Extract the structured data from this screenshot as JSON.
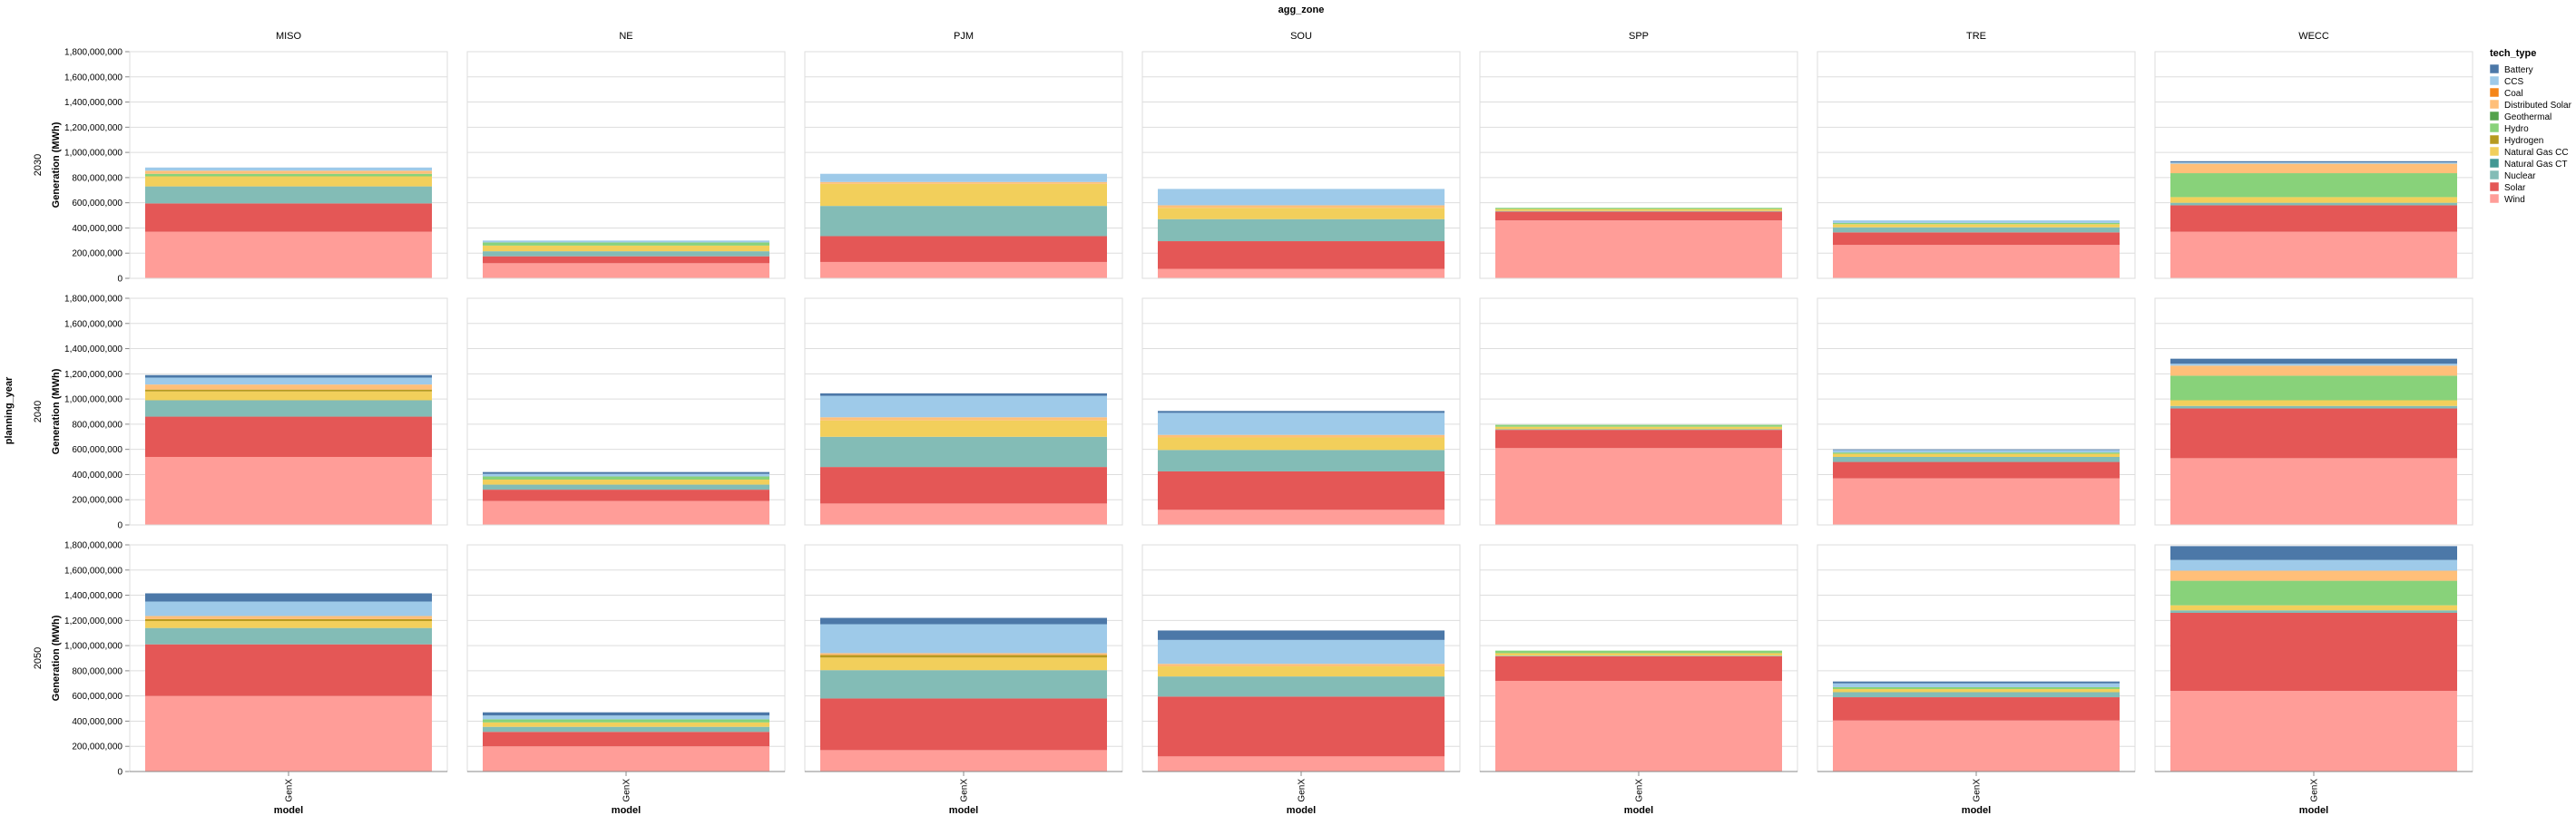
{
  "chart_data": {
    "type": "bar",
    "stacked": true,
    "title": "agg_zone",
    "row_title": "planning_year",
    "ylabel": "Generation (MWh)",
    "xlabel": "model",
    "x_category": "GenX",
    "ylim": [
      0,
      1800000000
    ],
    "y_ticks": [
      0,
      200000000,
      400000000,
      600000000,
      800000000,
      1000000000,
      1200000000,
      1400000000,
      1600000000,
      1800000000
    ],
    "y_tick_labels": [
      "0",
      "200,000,000",
      "400,000,000",
      "600,000,000",
      "800,000,000",
      "1,000,000,000",
      "1,200,000,000",
      "1,400,000,000",
      "1,600,000,000",
      "1,800,000,000"
    ],
    "grid": true,
    "legend_title": "tech_type",
    "legend_position": "right",
    "zones": [
      "MISO",
      "NE",
      "PJM",
      "SOU",
      "SPP",
      "TRE",
      "WECC"
    ],
    "years": [
      "2030",
      "2040",
      "2050"
    ],
    "tech_types": [
      "Battery",
      "CCS",
      "Coal",
      "Distributed Solar",
      "Geothermal",
      "Hydro",
      "Hydrogen",
      "Natural Gas CC",
      "Natural Gas CT",
      "Nuclear",
      "Solar",
      "Wind"
    ],
    "colors": {
      "Battery": "#4c78a8",
      "CCS": "#9ecae9",
      "Coal": "#f58518",
      "Distributed Solar": "#ffbf79",
      "Geothermal": "#54a24b",
      "Hydro": "#88d27a",
      "Hydrogen": "#b79a20",
      "Natural Gas CC": "#f2cf5b",
      "Natural Gas CT": "#439894",
      "Nuclear": "#83bcb6",
      "Solar": "#e45756",
      "Wind": "#ff9d98"
    },
    "stack_order": [
      "Wind",
      "Solar",
      "Nuclear",
      "Natural Gas CT",
      "Natural Gas CC",
      "Hydrogen",
      "Hydro",
      "Geothermal",
      "Distributed Solar",
      "Coal",
      "CCS",
      "Battery"
    ],
    "values": {
      "2030": {
        "MISO": {
          "Wind": 370000000,
          "Solar": 225000000,
          "Nuclear": 135000000,
          "Natural Gas CC": 80000000,
          "Distributed Solar": 25000000,
          "Hydro": 20000000,
          "CCS": 25000000
        },
        "NE": {
          "Wind": 120000000,
          "Solar": 55000000,
          "Nuclear": 40000000,
          "Natural Gas CC": 45000000,
          "Hydro": 25000000,
          "CCS": 15000000
        },
        "PJM": {
          "Wind": 130000000,
          "Solar": 205000000,
          "Nuclear": 240000000,
          "Natural Gas CC": 175000000,
          "Distributed Solar": 15000000,
          "CCS": 65000000
        },
        "SOU": {
          "Wind": 75000000,
          "Solar": 220000000,
          "Nuclear": 175000000,
          "Natural Gas CC": 90000000,
          "Distributed Solar": 20000000,
          "CCS": 130000000
        },
        "SPP": {
          "Wind": 460000000,
          "Solar": 70000000,
          "Nuclear": 5000000,
          "Natural Gas CC": 15000000,
          "Hydro": 10000000
        },
        "TRE": {
          "Wind": 265000000,
          "Solar": 100000000,
          "Nuclear": 40000000,
          "Natural Gas CC": 25000000,
          "Hydro": 10000000,
          "CCS": 20000000
        },
        "WECC": {
          "Wind": 370000000,
          "Solar": 210000000,
          "Nuclear": 20000000,
          "Natural Gas CC": 45000000,
          "Hydro": 190000000,
          "Distributed Solar": 75000000,
          "CCS": 10000000,
          "Battery": 10000000
        }
      },
      "2040": {
        "MISO": {
          "Wind": 540000000,
          "Solar": 320000000,
          "Nuclear": 130000000,
          "Natural Gas CC": 70000000,
          "Hydrogen": 15000000,
          "Distributed Solar": 40000000,
          "CCS": 55000000,
          "Battery": 20000000
        },
        "NE": {
          "Wind": 190000000,
          "Solar": 90000000,
          "Nuclear": 40000000,
          "Natural Gas CC": 40000000,
          "Hydro": 25000000,
          "CCS": 20000000,
          "Battery": 15000000
        },
        "PJM": {
          "Wind": 170000000,
          "Solar": 290000000,
          "Nuclear": 240000000,
          "Natural Gas CC": 130000000,
          "Distributed Solar": 25000000,
          "CCS": 170000000,
          "Battery": 20000000
        },
        "SOU": {
          "Wind": 120000000,
          "Solar": 305000000,
          "Nuclear": 170000000,
          "Natural Gas CC": 100000000,
          "Distributed Solar": 20000000,
          "CCS": 175000000,
          "Battery": 15000000
        },
        "SPP": {
          "Wind": 610000000,
          "Solar": 145000000,
          "Nuclear": 5000000,
          "Natural Gas CC": 20000000,
          "Hydro": 15000000
        },
        "TRE": {
          "Wind": 370000000,
          "Solar": 130000000,
          "Nuclear": 40000000,
          "Natural Gas CC": 25000000,
          "Hydro": 10000000,
          "CCS": 20000000,
          "Battery": 5000000
        },
        "WECC": {
          "Wind": 530000000,
          "Solar": 395000000,
          "Nuclear": 20000000,
          "Natural Gas CC": 45000000,
          "Hydro": 195000000,
          "Distributed Solar": 80000000,
          "CCS": 15000000,
          "Battery": 40000000
        }
      },
      "2050": {
        "MISO": {
          "Wind": 600000000,
          "Solar": 410000000,
          "Nuclear": 130000000,
          "Natural Gas CC": 55000000,
          "Hydrogen": 15000000,
          "Distributed Solar": 25000000,
          "CCS": 115000000,
          "Battery": 65000000
        },
        "NE": {
          "Wind": 200000000,
          "Solar": 115000000,
          "Nuclear": 40000000,
          "Natural Gas CC": 35000000,
          "Hydro": 25000000,
          "CCS": 30000000,
          "Battery": 25000000
        },
        "PJM": {
          "Wind": 170000000,
          "Solar": 410000000,
          "Nuclear": 225000000,
          "Natural Gas CC": 100000000,
          "Hydrogen": 20000000,
          "Distributed Solar": 15000000,
          "CCS": 230000000,
          "Battery": 50000000
        },
        "SOU": {
          "Wind": 120000000,
          "Solar": 475000000,
          "Nuclear": 160000000,
          "Natural Gas CC": 80000000,
          "Distributed Solar": 20000000,
          "CCS": 190000000,
          "Battery": 75000000
        },
        "SPP": {
          "Wind": 720000000,
          "Solar": 195000000,
          "Nuclear": 5000000,
          "Natural Gas CC": 20000000,
          "Hydro": 20000000
        },
        "TRE": {
          "Wind": 405000000,
          "Solar": 185000000,
          "Nuclear": 40000000,
          "Natural Gas CC": 25000000,
          "Hydro": 15000000,
          "CCS": 30000000,
          "Battery": 15000000
        },
        "WECC": {
          "Wind": 640000000,
          "Solar": 620000000,
          "Nuclear": 20000000,
          "Natural Gas CC": 40000000,
          "Hydro": 195000000,
          "Distributed Solar": 80000000,
          "CCS": 85000000,
          "Battery": 110000000
        }
      }
    }
  }
}
